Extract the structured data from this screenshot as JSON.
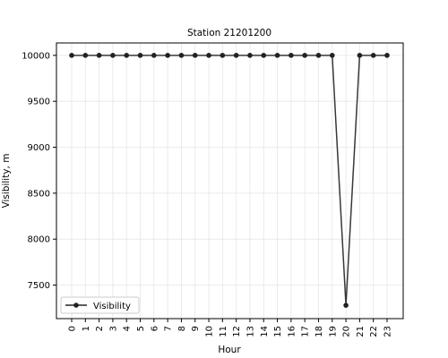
{
  "chart_data": {
    "type": "line",
    "title": "Station 21201200",
    "xlabel": "Hour",
    "ylabel": "Visibility, m",
    "x": [
      "0",
      "1",
      "2",
      "3",
      "4",
      "5",
      "6",
      "7",
      "8",
      "9",
      "10",
      "11",
      "12",
      "13",
      "14",
      "15",
      "16",
      "17",
      "18",
      "19",
      "20",
      "21",
      "22",
      "23"
    ],
    "series": [
      {
        "name": "Visibility",
        "color": "#222222",
        "values": [
          10000,
          10000,
          10000,
          10000,
          10000,
          10000,
          10000,
          10000,
          10000,
          10000,
          10000,
          10000,
          10000,
          10000,
          10000,
          10000,
          10000,
          10000,
          10000,
          10000,
          7280,
          10000,
          10000,
          10000
        ]
      }
    ],
    "ylim": [
      7135,
      10135
    ],
    "yticks": [
      7500,
      8000,
      8500,
      9000,
      9500,
      10000
    ],
    "grid": true,
    "legend_position": "lower-left"
  }
}
